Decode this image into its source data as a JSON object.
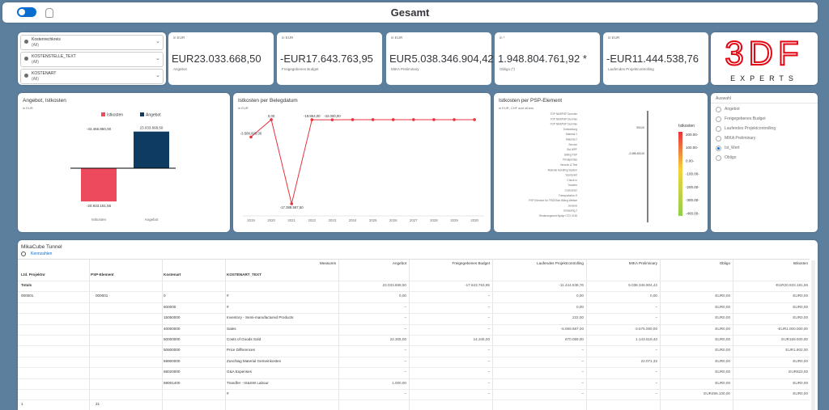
{
  "header": {
    "title": "Gesamt"
  },
  "filters": [
    {
      "label": "Kostenrechkreis",
      "value": "(All)"
    },
    {
      "label": "KOSTENSTELLE_TEXT",
      "value": "(All)"
    },
    {
      "label": "KOSTENART",
      "value": "(All)"
    }
  ],
  "kpis": [
    {
      "unit": "in EUR",
      "value": "EUR23.033.668,50",
      "label": "Angebot"
    },
    {
      "unit": "in EUR",
      "value": "-EUR17.643.763,95",
      "label": "Freigegebenes Budget"
    },
    {
      "unit": "in EUR",
      "value": "EUR5.038.346.904,42",
      "label": "MIKA Preliminary"
    },
    {
      "unit": "in *",
      "value": "1.948.804.761,92 *",
      "label": "Obligo (*)"
    },
    {
      "unit": "in EUR",
      "value": "-EUR11.444.538,76",
      "label": "Laufendes Projektcontrolling"
    }
  ],
  "logo": {
    "mark": "3DF",
    "text": "EXPERTS"
  },
  "chart_data": [
    {
      "type": "bar",
      "title": "Angebot, Istkosten",
      "subtitle": "in EUR",
      "categories": [
        "Istkosten",
        "Angebot"
      ],
      "series": [
        {
          "name": "Istkosten",
          "color": "#ee4a5e",
          "values": [
            -20933181.56,
            null
          ],
          "value_labels": [
            "-20.933.181,56",
            null
          ]
        },
        {
          "name": "Angebot",
          "color": "#0e3b62",
          "values": [
            null,
            23033668.5
          ],
          "value_labels": [
            null,
            "23.033.668,50"
          ]
        }
      ],
      "annotations": [
        "-43.466.850,00"
      ],
      "ylim": [
        -28000000,
        30000000
      ]
    },
    {
      "type": "line",
      "title": "Istkosten per Belegdatum",
      "subtitle": "in EUR",
      "color": "#e8333f",
      "categories": [
        "2019",
        "2020",
        "2021",
        "2022",
        "2023",
        "2024",
        "2025",
        "2026",
        "2027",
        "2028",
        "2029",
        "2030"
      ],
      "values": [
        -3588600,
        0,
        -17388587.5,
        -19864,
        -32000,
        0,
        0,
        0,
        0,
        0,
        0,
        0
      ],
      "value_labels": [
        "-3.588.600,00",
        "0,00",
        "-17.388.587,50",
        "-19.864,00",
        "-32.000,00",
        null,
        null,
        null,
        null,
        null,
        null,
        null
      ],
      "ylim": [
        -20000000,
        2000000
      ]
    },
    {
      "type": "heatmap",
      "title": "Istkosten per PSP-Element",
      "subtitle": "in EUR, CHF and others",
      "categories": [
        "TOP NMSPSP Dummie",
        "TOP NMSPSP Dummie",
        "TOP NMSPSP Dummie",
        "Entwicklung",
        "Material 1",
        "Material 2",
        "Service",
        "Std WPF",
        "Billing PSP",
        "Privatperitas",
        "Versuch & Test",
        "Material Handling System",
        "Sportpoint",
        "Check In",
        "Transfer",
        "Costcenter",
        "Transportation 9",
        "PSP Element für TRODSee Billing Weltwe",
        "General",
        "Unloading 2",
        "Rindersegment Bystyr CTO 4745"
      ],
      "annotations": [
        "900,00",
        "-2.498.400,00"
      ],
      "legend": {
        "title": "Istkosten",
        "ticks": [
          {
            "value": 200,
            "label": "200.00-"
          },
          {
            "value": 100,
            "label": "100.00-"
          },
          {
            "value": 0,
            "label": "0.00-"
          },
          {
            "value": -100,
            "label": "-100.00-"
          },
          {
            "value": -200,
            "label": "-200.00-"
          },
          {
            "value": -300,
            "label": "-300.00-"
          },
          {
            "value": -400,
            "label": "-400.00-"
          }
        ],
        "clim": [
          -420,
          220
        ]
      }
    }
  ],
  "selection": {
    "title": "Auswahl",
    "options": [
      "Angebot",
      "Freigegebenes Budget",
      "Laufendes Projektcontrolling",
      "MIKA Preliminary",
      "Ist_Wert",
      "Obligo"
    ],
    "selected": 4
  },
  "table": {
    "title": "MikaCube Tunnel",
    "link": "Kennzahlen",
    "measures_label": "Measures",
    "measure_headers": [
      "Angebot",
      "Freigegebenes Budget",
      "Laufendes Projektcontrolling",
      "MIKA Preliminary",
      "Obligo",
      "Istkosten"
    ],
    "dim_headers": [
      "Ltd. Projektnr",
      "PSP-Element",
      "Kostenart",
      "KOSTENART_TEXT"
    ],
    "rows": [
      [
        "Totals",
        null,
        null,
        null,
        "23.033.668,50",
        "-17.643.763,95",
        "-11.444.538,76",
        "5.038.346.904,42",
        null,
        "-EUR20.933.181,56"
      ],
      [
        "000001",
        "000001",
        "0",
        "#",
        "0,00",
        "–",
        "0,00",
        "0,00",
        "EUR0,00",
        "EUR0,00"
      ],
      [
        null,
        null,
        "600000",
        "#",
        "–",
        "–",
        "0,00",
        "–",
        "EUR0,00",
        "EUR0,00"
      ],
      [
        null,
        null,
        "15050000",
        "Inventory - Semi-manufactured Products",
        "–",
        "–",
        "222,00",
        "–",
        "EUR0,00",
        "EUR0,00"
      ],
      [
        null,
        null,
        "40000000",
        "Sales",
        "–",
        "–",
        "-5.069.687,00",
        "-3.575.000,00",
        "EUR0,00",
        "-EUR1.000.000,00"
      ],
      [
        null,
        null,
        "50000000",
        "Costs of Goods Sold",
        "23.305,00",
        "14.345,00",
        "870.059,00",
        "1.143.619,40",
        "EUR0,00",
        "EUR159.000,00"
      ],
      [
        null,
        null,
        "50600000",
        "Price Differences",
        "–",
        "–",
        "–",
        "–",
        "EUR0,00",
        "EUR1.902,00"
      ],
      [
        null,
        null,
        "59900000",
        "Zuschlag Material Gemeinkosten",
        "–",
        "–",
        "–",
        "22.071,32",
        "EUR0,00",
        "EUR0,00"
      ],
      [
        null,
        null,
        "68020000",
        "G&A Expenses",
        "–",
        "–",
        "–",
        "–",
        "EUR0,00",
        "EUR823,00"
      ],
      [
        null,
        null,
        "69001400",
        "Trandfer - IS&SW Labour",
        "1.000,00",
        "–",
        "–",
        "–",
        "EUR0,00",
        "EUR0,00"
      ],
      [
        null,
        null,
        null,
        "#",
        "–",
        "–",
        "–",
        "–",
        "EUR496.100,00",
        "EUR0,00"
      ],
      [
        "1",
        "21",
        null,
        null,
        null,
        null,
        null,
        null,
        null,
        null
      ]
    ]
  }
}
